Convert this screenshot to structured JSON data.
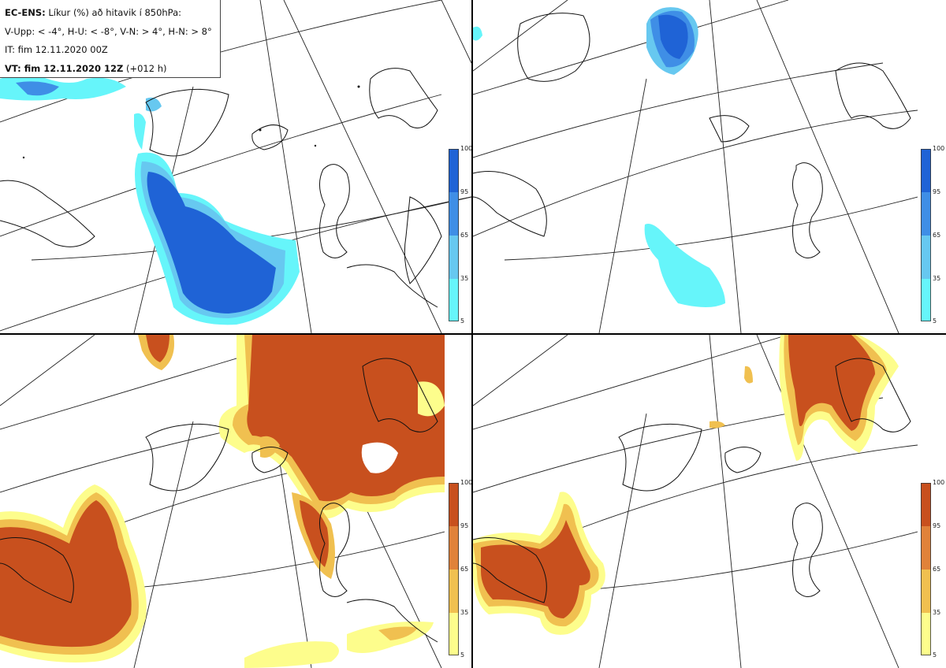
{
  "info": {
    "line1_bold": "EC-ENS:",
    "line1_rest": " Líkur (%) að hitavik í 850hPa:",
    "line2": "V-Upp: < -4°, H-U: < -8°, V-N: > 4°, H-N: > 8°",
    "line3": "IT: fim 12.11.2020 00Z",
    "line4_bold": "VT: fim 12.11.2020 12Z",
    "line4_rest": " (+012 h)"
  },
  "colorbars": {
    "cold": {
      "ticks": [
        "100",
        "95",
        "65",
        "35",
        "5"
      ],
      "colors": [
        "#1f63d6",
        "#3f8ee6",
        "#67c8f0",
        "#66f5fa"
      ]
    },
    "warm": {
      "ticks": [
        "100",
        "95",
        "65",
        "35",
        "5"
      ],
      "colors": [
        "#c8501e",
        "#e0823a",
        "#f0c050",
        "#fdfd8c"
      ]
    }
  },
  "panels": [
    {
      "id": "V-Upp",
      "scheme": "cold"
    },
    {
      "id": "H-U",
      "scheme": "cold"
    },
    {
      "id": "V-N",
      "scheme": "warm"
    },
    {
      "id": "H-N",
      "scheme": "warm"
    }
  ]
}
